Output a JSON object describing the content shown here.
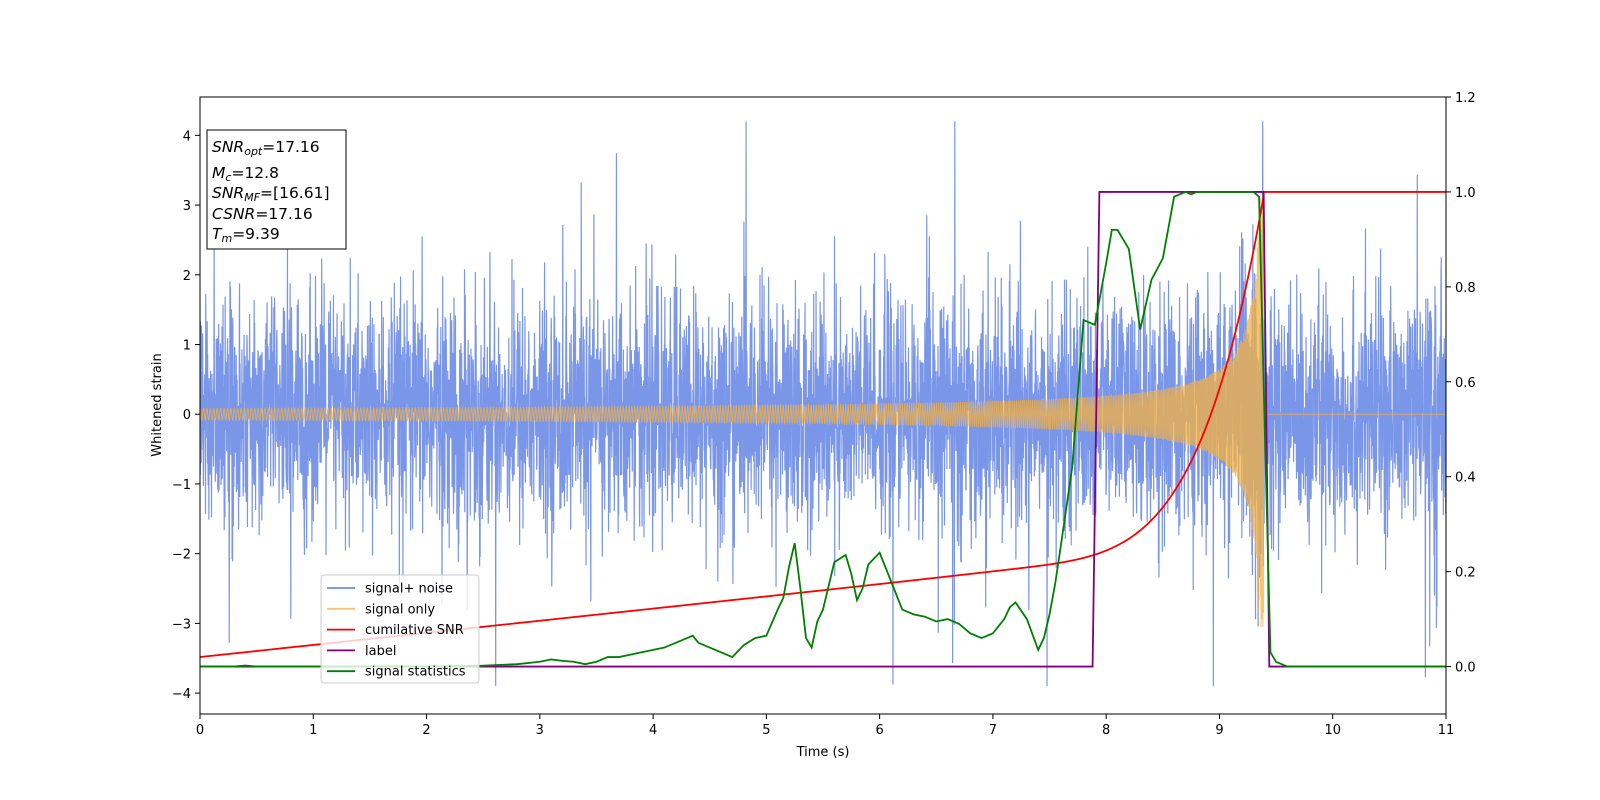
{
  "chart_data": {
    "type": "line",
    "title": "",
    "xlabel": "Time (s)",
    "ylabel": "Whitened strain",
    "y2label": "",
    "xlim": [
      0,
      11
    ],
    "ylim": [
      -4.3,
      4.55
    ],
    "y2lim": [
      -0.1,
      1.2
    ],
    "xticks": [
      "0",
      "1",
      "2",
      "3",
      "4",
      "5",
      "6",
      "7",
      "8",
      "9",
      "10",
      "11"
    ],
    "yticks": [
      "−4",
      "−3",
      "−2",
      "−1",
      "0",
      "1",
      "2",
      "3",
      "4"
    ],
    "y2ticks": [
      "0.0",
      "0.2",
      "0.4",
      "0.6",
      "0.8",
      "1.0",
      "1.2"
    ],
    "grid": false,
    "legend_position": "lower-left",
    "annotation": {
      "lines": [
        {
          "main": "SNR",
          "sub": "opt",
          "rest": "=17.16"
        },
        {
          "main": "M",
          "sub": "c",
          "rest": "=12.8"
        },
        {
          "main": "SNR",
          "sub": "MF",
          "rest": "=[16.61]"
        },
        {
          "main": "CSNR",
          "sub": "",
          "rest": "=17.16"
        },
        {
          "main": "T",
          "sub": "m",
          "rest": "=9.39"
        }
      ]
    },
    "series": [
      {
        "name": "signal+ noise",
        "axis": "left",
        "color": "#6c8be6",
        "description_values": {
          "noise_std": 0.8,
          "signal_peak_time": 9.39
        }
      },
      {
        "name": "signal only",
        "axis": "left",
        "color": "#f5b041",
        "chirp": {
          "amp_start": 0.05,
          "amp_max": 3.1,
          "t_merge": 9.39,
          "f_start": 25
        }
      },
      {
        "name": "cumilative SNR",
        "axis": "right",
        "color": "#ff0000",
        "x": [
          0,
          1,
          2,
          3,
          4,
          5,
          6,
          7,
          7.5,
          8,
          8.5,
          8.8,
          9.0,
          9.2,
          9.3,
          9.39,
          9.4,
          11
        ],
        "y": [
          0.025,
          0.05,
          0.075,
          0.1,
          0.125,
          0.15,
          0.18,
          0.22,
          0.25,
          0.295,
          0.375,
          0.45,
          0.55,
          0.7,
          0.82,
          1.0,
          1.0,
          1.0
        ]
      },
      {
        "name": "label",
        "axis": "right",
        "color": "#800080",
        "x": [
          0,
          7.88,
          7.94,
          9.39,
          9.44,
          11
        ],
        "y": [
          0,
          0,
          1,
          1,
          0,
          0
        ]
      },
      {
        "name": "signal statistics",
        "axis": "right",
        "color": "#008000",
        "x": [
          0,
          0.3,
          0.4,
          0.5,
          1,
          2,
          2.5,
          2.8,
          3,
          3.1,
          3.2,
          3.3,
          3.4,
          3.5,
          3.6,
          3.7,
          3.8,
          3.9,
          4,
          4.1,
          4.2,
          4.3,
          4.35,
          4.4,
          4.5,
          4.6,
          4.7,
          4.8,
          4.9,
          5.0,
          5.1,
          5.15,
          5.2,
          5.25,
          5.3,
          5.35,
          5.4,
          5.45,
          5.5,
          5.6,
          5.7,
          5.75,
          5.8,
          5.85,
          5.9,
          6.0,
          6.1,
          6.2,
          6.3,
          6.4,
          6.5,
          6.6,
          6.7,
          6.8,
          6.9,
          7.0,
          7.1,
          7.15,
          7.2,
          7.3,
          7.4,
          7.45,
          7.5,
          7.55,
          7.6,
          7.7,
          7.8,
          7.9,
          8.0,
          8.05,
          8.1,
          8.2,
          8.3,
          8.4,
          8.5,
          8.6,
          8.7,
          8.75,
          8.8,
          8.9,
          9.0,
          9.1,
          9.2,
          9.3,
          9.35,
          9.4,
          9.45,
          9.5,
          9.6,
          9.7,
          11
        ],
        "y": [
          0,
          0,
          0.002,
          0,
          0,
          0,
          0.002,
          0.005,
          0.01,
          0.015,
          0.012,
          0.01,
          0.005,
          0.01,
          0.02,
          0.02,
          0.025,
          0.03,
          0.035,
          0.04,
          0.05,
          0.06,
          0.065,
          0.05,
          0.04,
          0.03,
          0.02,
          0.045,
          0.06,
          0.065,
          0.12,
          0.145,
          0.21,
          0.26,
          0.165,
          0.06,
          0.04,
          0.095,
          0.12,
          0.22,
          0.235,
          0.195,
          0.14,
          0.165,
          0.215,
          0.24,
          0.18,
          0.12,
          0.11,
          0.105,
          0.095,
          0.1,
          0.09,
          0.07,
          0.06,
          0.07,
          0.1,
          0.125,
          0.135,
          0.1,
          0.035,
          0.06,
          0.11,
          0.175,
          0.255,
          0.42,
          0.73,
          0.72,
          0.85,
          0.92,
          0.92,
          0.88,
          0.71,
          0.815,
          0.86,
          0.99,
          1.0,
          0.995,
          1.0,
          1.0,
          1.0,
          1.0,
          1.0,
          1.0,
          0.99,
          0.5,
          0.03,
          0.01,
          0.0,
          0.0,
          0.0
        ]
      }
    ]
  }
}
